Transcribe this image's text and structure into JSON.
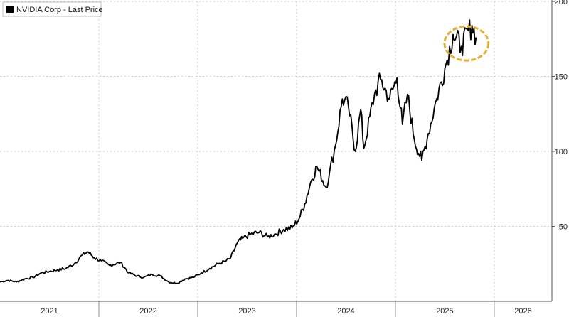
{
  "chart_data": {
    "type": "line",
    "title": "",
    "xlabel": "",
    "ylabel": "",
    "legend": {
      "placement": "top-left",
      "entries": [
        "NVIDIA Corp - Last Price"
      ]
    },
    "series": [
      {
        "name": "NVIDIA Corp - Last Price",
        "color": "#000000",
        "points": [
          [
            "2021-01-01",
            13
          ],
          [
            "2021-02-01",
            14
          ],
          [
            "2021-03-01",
            13
          ],
          [
            "2021-04-01",
            15
          ],
          [
            "2021-05-01",
            16
          ],
          [
            "2021-06-01",
            19
          ],
          [
            "2021-07-01",
            20
          ],
          [
            "2021-08-01",
            21
          ],
          [
            "2021-09-01",
            22
          ],
          [
            "2021-10-01",
            25
          ],
          [
            "2021-11-01",
            31
          ],
          [
            "2021-11-22",
            33
          ],
          [
            "2021-12-15",
            29
          ],
          [
            "2022-01-10",
            27
          ],
          [
            "2022-02-10",
            24
          ],
          [
            "2022-03-20",
            26
          ],
          [
            "2022-04-20",
            19
          ],
          [
            "2022-05-20",
            17
          ],
          [
            "2022-06-15",
            16
          ],
          [
            "2022-07-15",
            18
          ],
          [
            "2022-08-15",
            17
          ],
          [
            "2022-09-15",
            13
          ],
          [
            "2022-10-15",
            12
          ],
          [
            "2022-11-15",
            15
          ],
          [
            "2022-12-15",
            16
          ],
          [
            "2023-01-15",
            19
          ],
          [
            "2023-02-15",
            22
          ],
          [
            "2023-03-15",
            25
          ],
          [
            "2023-04-15",
            27
          ],
          [
            "2023-05-01",
            29
          ],
          [
            "2023-05-26",
            39
          ],
          [
            "2023-06-15",
            42
          ],
          [
            "2023-07-15",
            45
          ],
          [
            "2023-08-15",
            46
          ],
          [
            "2023-09-15",
            43
          ],
          [
            "2023-10-15",
            45
          ],
          [
            "2023-11-15",
            48
          ],
          [
            "2023-12-15",
            49
          ],
          [
            "2024-01-10",
            55
          ],
          [
            "2024-02-01",
            65
          ],
          [
            "2024-02-22",
            79
          ],
          [
            "2024-03-15",
            90
          ],
          [
            "2024-04-19",
            76
          ],
          [
            "2024-05-01",
            86
          ],
          [
            "2024-05-23",
            104
          ],
          [
            "2024-06-18",
            135
          ],
          [
            "2024-07-10",
            130
          ],
          [
            "2024-08-05",
            100
          ],
          [
            "2024-08-25",
            128
          ],
          [
            "2024-09-06",
            102
          ],
          [
            "2024-10-15",
            138
          ],
          [
            "2024-11-07",
            148
          ],
          [
            "2024-12-10",
            135
          ],
          [
            "2025-01-07",
            149
          ],
          [
            "2025-01-27",
            118
          ],
          [
            "2025-02-15",
            138
          ],
          [
            "2025-03-10",
            108
          ],
          [
            "2025-04-07",
            94
          ],
          [
            "2025-05-01",
            112
          ],
          [
            "2025-06-01",
            135
          ],
          [
            "2025-07-01",
            155
          ],
          [
            "2025-08-01",
            178
          ],
          [
            "2025-09-01",
            170
          ],
          [
            "2025-10-10",
            184
          ],
          [
            "2025-10-25",
            176
          ]
        ]
      }
    ],
    "x_axis": {
      "type": "date",
      "range": [
        "2021-01-01",
        "2026-08-01"
      ],
      "tick_labels": [
        "2021",
        "2022",
        "2023",
        "2024",
        "2025",
        "2026"
      ]
    },
    "y_axis": {
      "position": "right",
      "range": [
        0,
        200
      ],
      "ticks": [
        50,
        100,
        150,
        200
      ]
    },
    "grid": true,
    "annotation": {
      "type": "highlight-ellipse",
      "color": "#e7b031",
      "center": [
        "2025-09-20",
        172
      ]
    }
  }
}
